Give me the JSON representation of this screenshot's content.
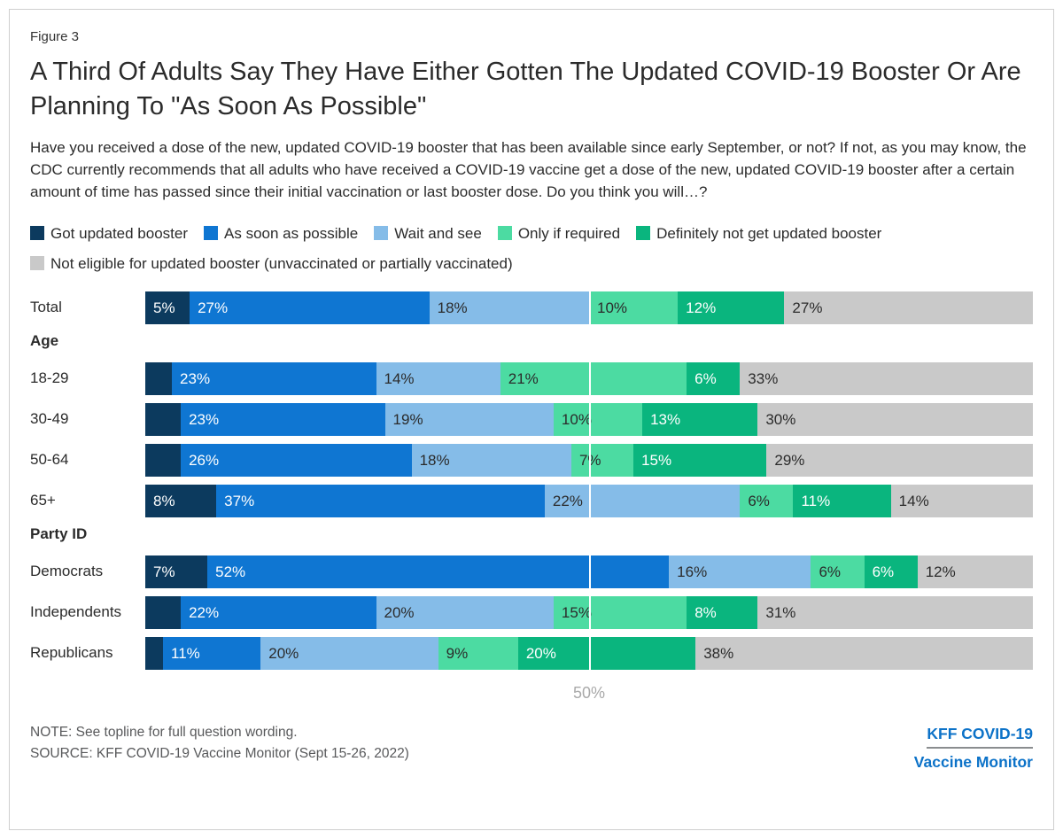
{
  "figure_label": "Figure 3",
  "title": "A Third Of Adults Say They Have Either Gotten The Updated COVID-19 Booster Or Are Planning To \"As Soon As Possible\"",
  "question": "Have you received a dose of the new, updated COVID-19 booster that has been available since early September, or not? If not, as you may know, the CDC currently recommends that all adults who have received a COVID-19 vaccine get a dose of the new, updated COVID-19 booster after a certain amount of time has passed since their initial vaccination or last booster dose. Do you think you will…?",
  "chart_data": {
    "type": "bar",
    "variant": "stacked-horizontal",
    "xlim": [
      0,
      100
    ],
    "gridline": {
      "value": 50,
      "label": "50%"
    },
    "value_suffix": "%",
    "label_min_value_to_show": 5,
    "series": [
      {
        "name": "Got updated booster",
        "color": "#0C3A5E",
        "text_color": "#FFFFFF"
      },
      {
        "name": "As soon as possible",
        "color": "#0F76D2",
        "text_color": "#FFFFFF"
      },
      {
        "name": "Wait and see",
        "color": "#85BCE8",
        "text_color": "#2B2B2B"
      },
      {
        "name": "Only if required",
        "color": "#4CDBA2",
        "text_color": "#2B2B2B"
      },
      {
        "name": "Definitely not get updated booster",
        "color": "#0AB57E",
        "text_color": "#FFFFFF"
      },
      {
        "name": "Not eligible for updated booster (unvaccinated or partially vaccinated)",
        "color": "#C9C9C9",
        "text_color": "#2B2B2B"
      }
    ],
    "groups": [
      {
        "header": "",
        "rows": [
          {
            "label": "Total",
            "values": [
              5,
              27,
              18,
              10,
              12,
              27
            ]
          }
        ]
      },
      {
        "header": "Age",
        "rows": [
          {
            "label": "18-29",
            "values": [
              3,
              23,
              14,
              21,
              6,
              33
            ]
          },
          {
            "label": "30-49",
            "values": [
              4,
              23,
              19,
              10,
              13,
              30
            ]
          },
          {
            "label": "50-64",
            "values": [
              4,
              26,
              18,
              7,
              15,
              29
            ]
          },
          {
            "label": "65+",
            "values": [
              8,
              37,
              22,
              6,
              11,
              14
            ]
          }
        ]
      },
      {
        "header": "Party ID",
        "rows": [
          {
            "label": "Democrats",
            "values": [
              7,
              52,
              16,
              6,
              6,
              12
            ]
          },
          {
            "label": "Independents",
            "values": [
              4,
              22,
              20,
              15,
              8,
              31
            ]
          },
          {
            "label": "Republicans",
            "values": [
              2,
              11,
              20,
              9,
              20,
              38
            ]
          }
        ]
      }
    ]
  },
  "footer": {
    "note": "NOTE: See topline for full question wording.",
    "source": "SOURCE: KFF COVID-19 Vaccine Monitor (Sept 15-26, 2022)",
    "logo": {
      "line1": "KFF COVID-19",
      "line2": "Vaccine Monitor"
    }
  }
}
